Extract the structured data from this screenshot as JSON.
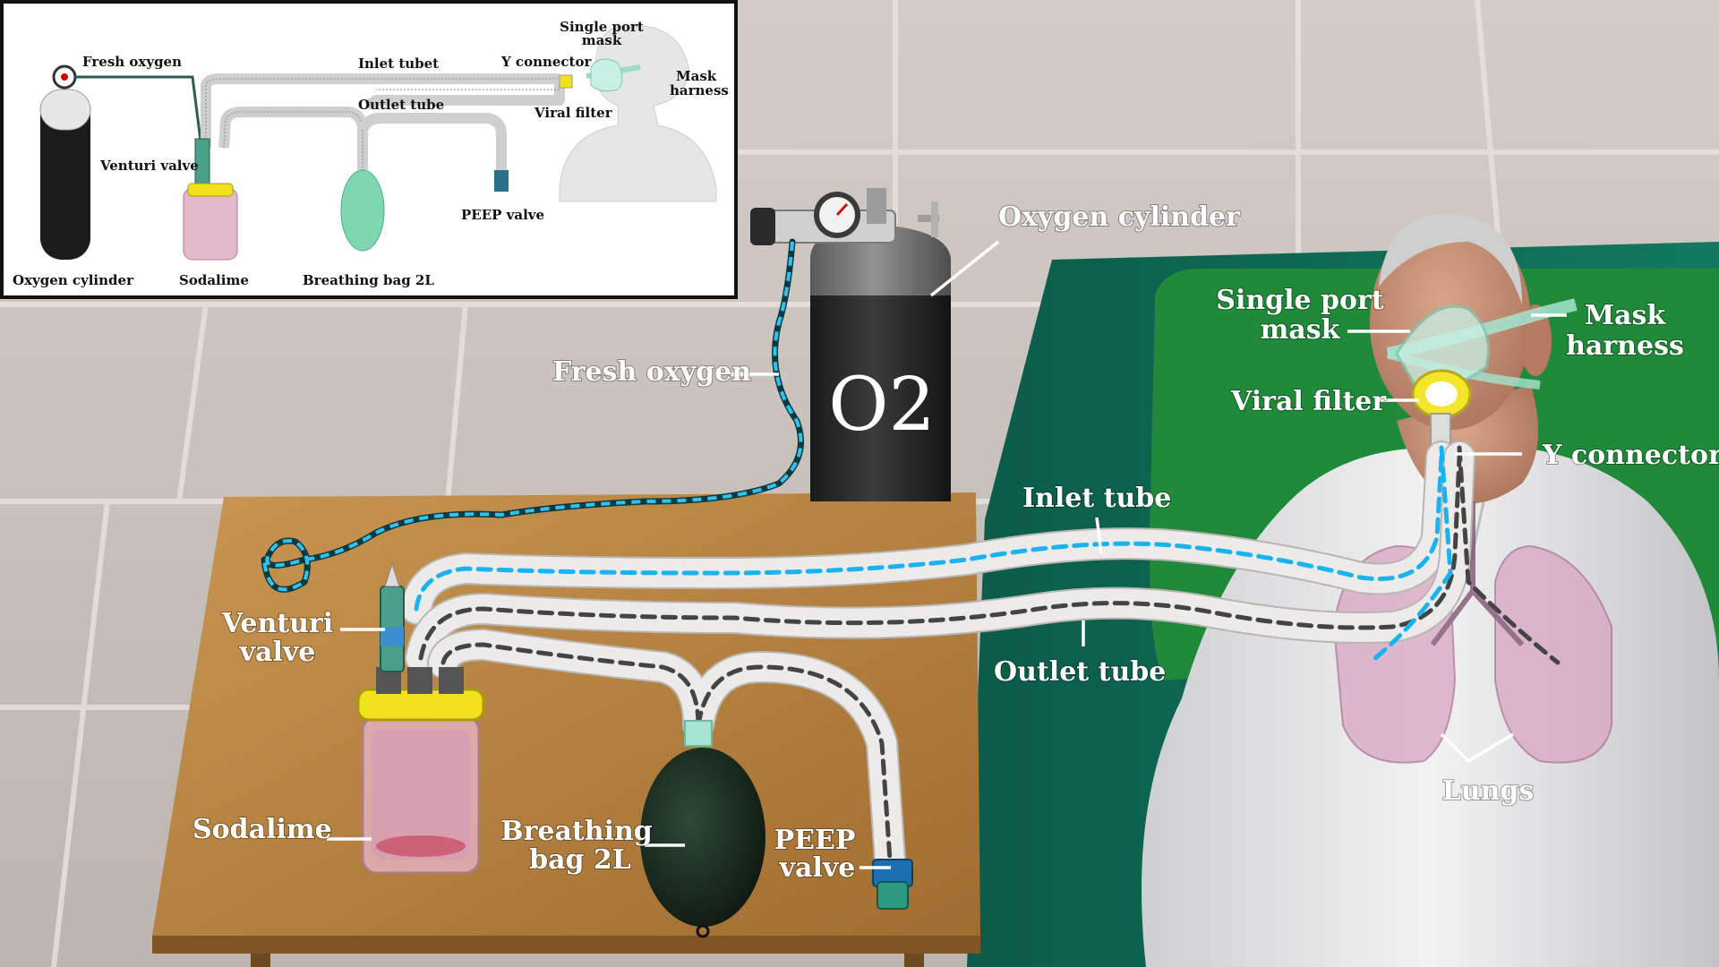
{
  "inset": {
    "fresh_oxygen": "Fresh oxygen",
    "inlet_tube": "Inlet tubet",
    "y_connector": "Y connector",
    "single_port_mask": [
      "Single port",
      "mask"
    ],
    "mask_harness": [
      "Mask",
      "harness"
    ],
    "outlet_tube": "Outlet tube",
    "viral_filter": "Viral filter",
    "venturi_valve": "Venturi valve",
    "peep_valve": "PEEP valve",
    "oxygen_cylinder": "Oxygen cylinder",
    "sodalime": "Sodalime",
    "breathing_bag": "Breathing bag 2L"
  },
  "main": {
    "oxygen_cylinder": "Oxygen cylinder",
    "cylinder_mark": "O2",
    "fresh_oxygen": "Fresh oxygen",
    "single_port_mask": [
      "Single port",
      "mask"
    ],
    "mask_harness": [
      "Mask",
      "harness"
    ],
    "viral_filter": "Viral filter",
    "y_connector": "Y connector",
    "inlet_tube": "Inlet tube",
    "outlet_tube": "Outlet tube",
    "venturi_valve": [
      "Venturi",
      "valve"
    ],
    "sodalime": "Sodalime",
    "breathing_bag": [
      "Breathing",
      "bag 2L"
    ],
    "peep_valve": [
      "PEEP",
      "valve"
    ],
    "lungs": "Lungs"
  },
  "colors": {
    "wall": "#c9c2bd",
    "table": "#b5803e",
    "bed": "#0e6b55",
    "pillow": "#1f8a3a",
    "inflow": "#19b3f0",
    "outflow": "#444444",
    "cylinder": "#2a2a2a",
    "jar_lid": "#f2e21b"
  }
}
